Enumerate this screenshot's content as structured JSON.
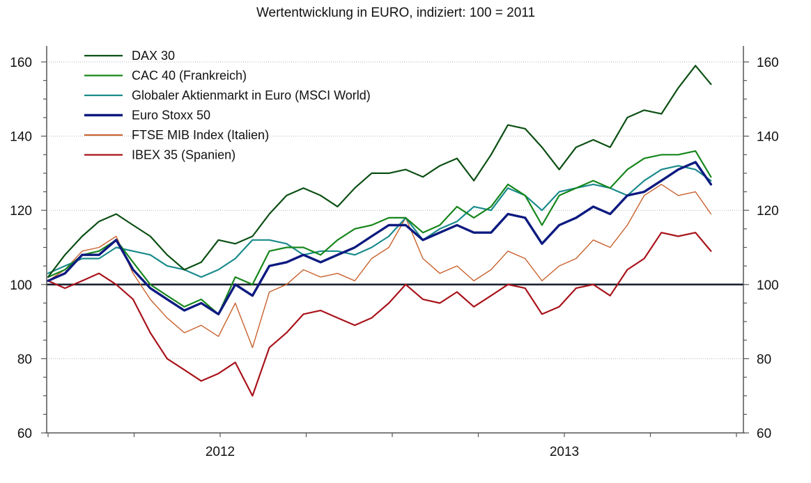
{
  "chart_data": {
    "type": "line",
    "title": "Wertentwicklung in EURO, indiziert: 100 = 2011",
    "xlabel": "",
    "ylabel": "",
    "ylim": [
      60,
      160
    ],
    "yticks": [
      60,
      80,
      100,
      120,
      140,
      160
    ],
    "y_minor_step": 5,
    "x_range": [
      0,
      1.96
    ],
    "x_tick_labels": [
      {
        "label": "2012",
        "x": 0.5
      },
      {
        "label": "2013",
        "x": 1.5
      }
    ],
    "x_ticks_quarters": [
      0,
      0.25,
      0.5,
      0.75,
      1.0,
      1.25,
      1.5,
      1.75,
      2.0
    ],
    "x_note": "x in years since start of 2012",
    "grid": "horizontal dotted at major y ticks",
    "reference_line": 100,
    "legend_position": "top-left",
    "x": [
      0.0,
      0.049,
      0.099,
      0.148,
      0.198,
      0.247,
      0.297,
      0.346,
      0.396,
      0.445,
      0.495,
      0.544,
      0.594,
      0.643,
      0.693,
      0.742,
      0.792,
      0.841,
      0.891,
      0.94,
      0.99,
      1.039,
      1.089,
      1.138,
      1.188,
      1.237,
      1.287,
      1.336,
      1.386,
      1.435,
      1.485,
      1.534,
      1.584,
      1.633,
      1.683,
      1.732,
      1.782,
      1.831,
      1.881,
      1.926
    ],
    "series": [
      {
        "name": "DAX 30",
        "color": "#0b4f13",
        "width": 2.2,
        "values": [
          102,
          108,
          113,
          117,
          119,
          116,
          113,
          108,
          104,
          106,
          112,
          111,
          113,
          119,
          124,
          126,
          124,
          121,
          126,
          130,
          130,
          131,
          129,
          132,
          134,
          128,
          135,
          143,
          142,
          137,
          131,
          137,
          139,
          137,
          145,
          147,
          146,
          153,
          159,
          154
        ]
      },
      {
        "name": "CAC 40 (Frankreich)",
        "color": "#16861b",
        "width": 2.2,
        "values": [
          102,
          104,
          108,
          109,
          112,
          106,
          100,
          97,
          94,
          96,
          92,
          102,
          100,
          109,
          110,
          110,
          108,
          112,
          115,
          116,
          118,
          118,
          114,
          116,
          121,
          118,
          121,
          127,
          124,
          116,
          124,
          126,
          128,
          126,
          131,
          134,
          135,
          135,
          136,
          129
        ]
      },
      {
        "name": "Globaler Aktienmarkt in Euro (MSCI World)",
        "color": "#1a8a8c",
        "width": 2.2,
        "values": [
          103,
          105,
          107,
          107,
          110,
          109,
          108,
          105,
          104,
          102,
          104,
          107,
          112,
          112,
          111,
          108,
          109,
          109,
          108,
          110,
          113,
          118,
          112,
          115,
          117,
          121,
          120,
          126,
          124,
          120,
          125,
          126,
          127,
          126,
          124,
          128,
          131,
          132,
          131,
          128
        ]
      },
      {
        "name": "Euro Stoxx 50",
        "color": "#0d1a80",
        "width": 3.4,
        "values": [
          101,
          103,
          108,
          108,
          112,
          104,
          99,
          96,
          93,
          95,
          92,
          100,
          97,
          105,
          106,
          108,
          106,
          108,
          110,
          113,
          116,
          116,
          112,
          114,
          116,
          114,
          114,
          119,
          118,
          111,
          116,
          118,
          121,
          119,
          124,
          125,
          128,
          131,
          133,
          127
        ]
      },
      {
        "name": "FTSE MIB Index (Italien)",
        "color": "#c8602c",
        "width": 1.4,
        "values": [
          101,
          104,
          109,
          110,
          113,
          103,
          96,
          91,
          87,
          89,
          86,
          95,
          83,
          98,
          100,
          104,
          102,
          103,
          101,
          107,
          110,
          118,
          107,
          103,
          105,
          101,
          104,
          109,
          107,
          101,
          105,
          107,
          112,
          110,
          116,
          124,
          127,
          124,
          125,
          119
        ]
      },
      {
        "name": "IBEX 35 (Spanien)",
        "color": "#a8131a",
        "width": 2.2,
        "values": [
          101,
          99,
          101,
          103,
          100,
          96,
          87,
          80,
          77,
          74,
          76,
          79,
          70,
          83,
          87,
          92,
          93,
          91,
          89,
          91,
          95,
          100,
          96,
          95,
          98,
          94,
          97,
          100,
          99,
          92,
          94,
          99,
          100,
          97,
          104,
          107,
          114,
          113,
          114,
          109
        ]
      }
    ]
  }
}
